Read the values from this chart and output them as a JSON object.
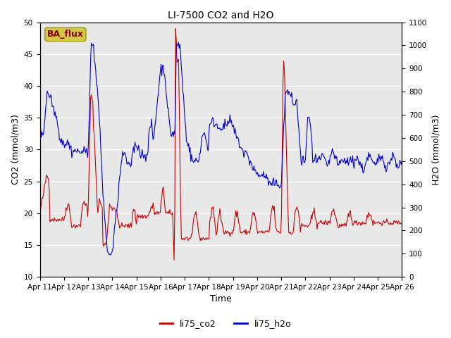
{
  "title": "LI-7500 CO2 and H2O",
  "xlabel": "Time",
  "ylabel_left": "CO2 (mmol/m3)",
  "ylabel_right": "H2O (mmol/m3)",
  "ylim_left": [
    10,
    50
  ],
  "ylim_right": [
    0,
    1100
  ],
  "yticks_left": [
    10,
    15,
    20,
    25,
    30,
    35,
    40,
    45,
    50
  ],
  "yticks_right": [
    0,
    100,
    200,
    300,
    400,
    500,
    600,
    700,
    800,
    900,
    1000,
    1100
  ],
  "xtick_labels": [
    "Apr 11",
    "Apr 12",
    "Apr 13",
    "Apr 14",
    "Apr 15",
    "Apr 16",
    "Apr 17",
    "Apr 18",
    "Apr 19",
    "Apr 20",
    "Apr 21",
    "Apr 22",
    "Apr 23",
    "Apr 24",
    "Apr 25",
    "Apr 26"
  ],
  "color_co2": "#cc0000",
  "color_h2o": "#0000cc",
  "label_co2": "li75_co2",
  "label_h2o": "li75_h2o",
  "ba_flux_text": "BA_flux",
  "ba_flux_bg": "#d4c84a",
  "ba_flux_text_color": "#8b0000",
  "plot_bg": "#e8e8e8",
  "fig_bg": "#ffffff",
  "grid_color": "#ffffff",
  "line_width": 0.8,
  "n_points": 500,
  "seed": 42,
  "tick_fontsize": 7.5,
  "label_fontsize": 9,
  "title_fontsize": 10
}
